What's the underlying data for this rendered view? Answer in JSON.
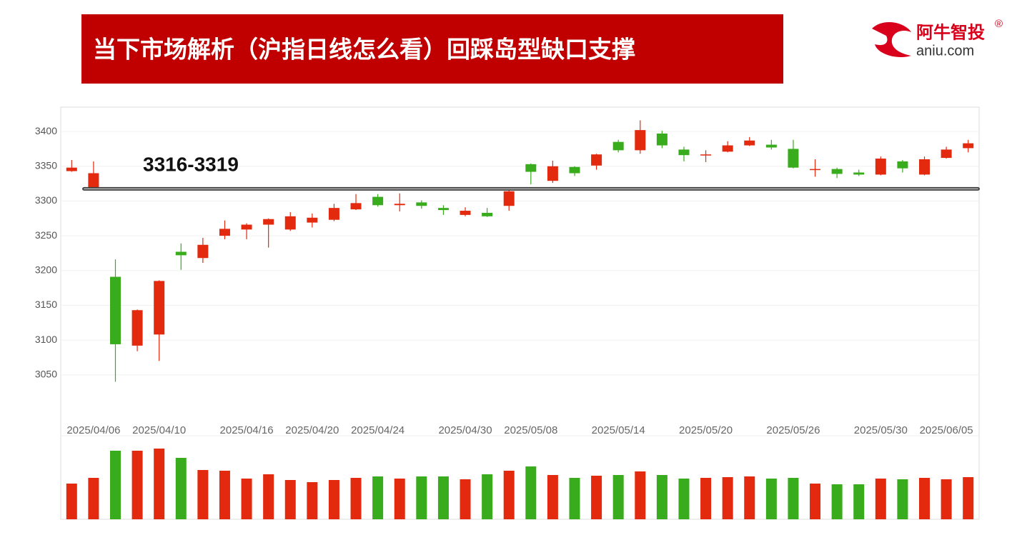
{
  "header": {
    "title": "当下市场解析（沪指日线怎么看）回踩岛型缺口支撑",
    "logo_text": "阿牛智投",
    "logo_mark": "®",
    "logo_url": "aniu.com"
  },
  "chart_data": {
    "type": "candlestick",
    "categories": [
      null,
      "2025/04/06",
      null,
      null,
      "2025/04/10",
      null,
      null,
      null,
      "2025/04/16",
      null,
      null,
      "2025/04/20",
      null,
      null,
      "2025/04/24",
      null,
      null,
      null,
      "2025/04/30",
      null,
      null,
      "2025/05/08",
      null,
      null,
      null,
      "2025/05/14",
      null,
      null,
      null,
      "2025/05/20",
      null,
      null,
      null,
      "2025/05/26",
      null,
      null,
      null,
      "2025/05/30",
      null,
      null,
      "2025/06/05",
      null
    ],
    "open": [
      3343,
      3319,
      3191,
      3092,
      3108,
      3227,
      3218,
      3250,
      3259,
      3266,
      3259,
      3269,
      3273,
      3288,
      3306,
      3294,
      3298,
      3290,
      3280,
      3283,
      3293,
      3353,
      3329,
      3349,
      3351,
      3385,
      3373,
      3397,
      3374,
      3366,
      3371,
      3380,
      3381,
      3375,
      3345,
      3346,
      3341,
      3338,
      3357,
      3338,
      3362,
      3376
    ],
    "high": [
      3359,
      3357,
      3216,
      3144,
      3186,
      3239,
      3247,
      3272,
      3268,
      3275,
      3284,
      3282,
      3296,
      3310,
      3310,
      3311,
      3301,
      3294,
      3291,
      3290,
      3316,
      3354,
      3358,
      3350,
      3368,
      3388,
      3416,
      3401,
      3378,
      3373,
      3386,
      3392,
      3388,
      3388,
      3360,
      3348,
      3345,
      3364,
      3359,
      3364,
      3378,
      3388
    ],
    "low": [
      3342,
      3318,
      3040,
      3084,
      3070,
      3201,
      3211,
      3245,
      3245,
      3233,
      3257,
      3262,
      3271,
      3287,
      3292,
      3285,
      3289,
      3280,
      3278,
      3277,
      3286,
      3324,
      3326,
      3336,
      3345,
      3370,
      3368,
      3376,
      3357,
      3356,
      3370,
      3379,
      3374,
      3347,
      3335,
      3333,
      3336,
      3337,
      3341,
      3337,
      3361,
      3370
    ],
    "close": [
      3348,
      3340,
      3094,
      3143,
      3185,
      3222,
      3237,
      3260,
      3266,
      3274,
      3278,
      3276,
      3290,
      3297,
      3294,
      3296,
      3293,
      3287,
      3286,
      3278,
      3314,
      3342,
      3350,
      3340,
      3367,
      3373,
      3402,
      3380,
      3366,
      3367,
      3380,
      3387,
      3377,
      3348,
      3346,
      3339,
      3338,
      3361,
      3347,
      3360,
      3374,
      3383
    ],
    "volume": [
      50,
      58,
      96,
      96,
      99,
      86,
      69,
      68,
      57,
      63,
      55,
      52,
      55,
      58,
      60,
      57,
      60,
      60,
      56,
      63,
      68,
      74,
      62,
      58,
      61,
      62,
      67,
      62,
      57,
      58,
      59,
      60,
      57,
      58,
      50,
      49,
      49,
      57,
      56,
      58,
      56,
      59
    ],
    "up_color": "#e3290e",
    "down_color": "#38ac1c",
    "ylim": [
      2983,
      3435
    ],
    "yticks": [
      3050,
      3100,
      3150,
      3200,
      3250,
      3300,
      3350,
      3400
    ],
    "grid": true,
    "annotation": "3316-3319",
    "band": [
      3316,
      3319
    ]
  }
}
